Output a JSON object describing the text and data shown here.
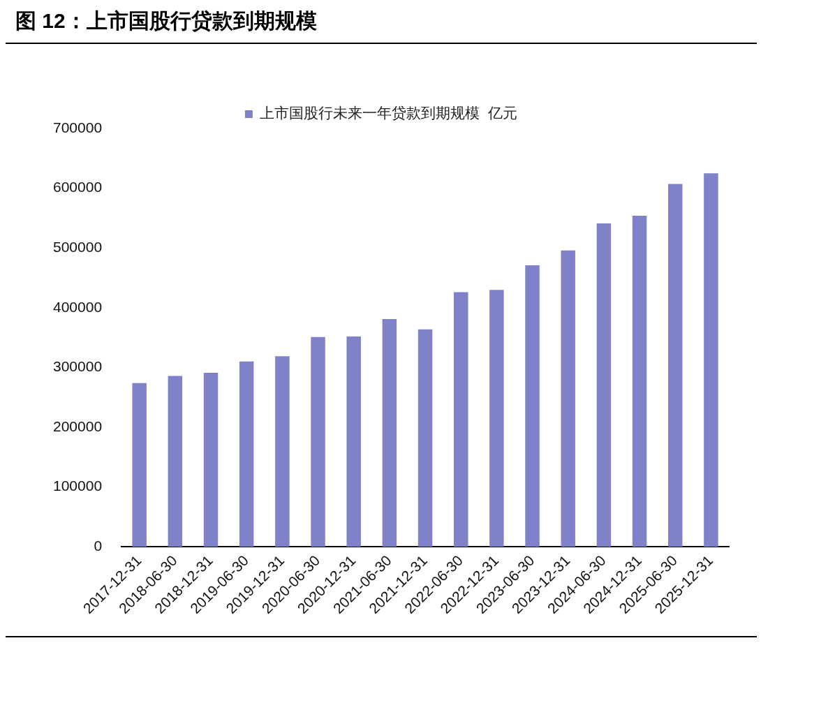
{
  "chart_data": {
    "type": "bar",
    "title": "图 12：上市国股行贷款到期规模",
    "categories": [
      "2017-12-31",
      "2018-06-30",
      "2018-12-31",
      "2019-06-30",
      "2019-12-31",
      "2020-06-30",
      "2020-12-31",
      "2021-06-30",
      "2021-12-31",
      "2022-06-30",
      "2022-12-31",
      "2023-06-30",
      "2023-12-31",
      "2024-06-30",
      "2024-12-31",
      "2025-06-30",
      "2025-12-31"
    ],
    "series": [
      {
        "name": "上市国股行未来一年贷款到期规模  亿元",
        "color": "#7f82c9",
        "values": [
          274000,
          286000,
          291000,
          310000,
          319000,
          351000,
          352000,
          381000,
          364000,
          426000,
          430000,
          471000,
          496000,
          541000,
          554000,
          607000,
          625000
        ]
      }
    ],
    "ylim": [
      0,
      700000
    ],
    "yticks": [
      0,
      100000,
      200000,
      300000,
      400000,
      500000,
      600000,
      700000
    ],
    "grid": false,
    "legend": "top"
  }
}
